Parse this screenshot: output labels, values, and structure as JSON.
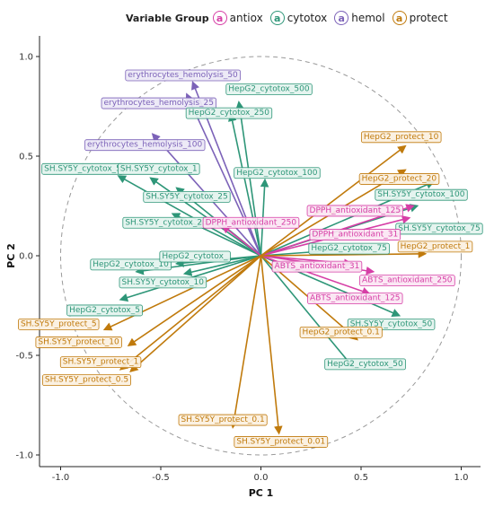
{
  "legend": {
    "title": "Variable Group",
    "items": [
      {
        "key": "antiox",
        "label": "antiox",
        "color": "#D63EA6"
      },
      {
        "key": "cytotox",
        "label": "cytotox",
        "color": "#2E9678"
      },
      {
        "key": "hemol",
        "label": "hemol",
        "color": "#7C62B8"
      },
      {
        "key": "protect",
        "label": "protect",
        "color": "#C07A0C"
      }
    ]
  },
  "chart_data": {
    "type": "biplot-vectors",
    "xlabel": "PC 1",
    "ylabel": "PC 2",
    "xlim": [
      -1.1,
      1.1
    ],
    "ylim": [
      -1.1,
      1.1
    ],
    "xticks": [
      "-1.0",
      "-0.5",
      "0.0",
      "0.5",
      "1.0"
    ],
    "yticks": [
      "1.0",
      "0.5",
      "0.0",
      "-0.5",
      "-1.0"
    ],
    "tick_values": [
      -1.0,
      -0.5,
      0.0,
      0.5,
      1.0
    ],
    "unit_circle": true,
    "grid": false,
    "vectors": [
      {
        "name": "erythrocytes_hemolysis_50",
        "group": "hemol",
        "x": -0.34,
        "y": 0.87,
        "lx": -0.39,
        "ly": 0.91
      },
      {
        "name": "erythrocytes_hemolysis_25",
        "group": "hemol",
        "x": -0.37,
        "y": 0.81,
        "lx": -0.51,
        "ly": 0.77
      },
      {
        "name": "erythrocytes_hemolysis_100",
        "group": "hemol",
        "x": -0.54,
        "y": 0.61,
        "lx": -0.58,
        "ly": 0.56
      },
      {
        "name": "HepG2_cytotox_500",
        "group": "cytotox",
        "x": -0.11,
        "y": 0.77,
        "lx": 0.04,
        "ly": 0.84
      },
      {
        "name": "HepG2_cytotox_250",
        "group": "cytotox",
        "x": -0.15,
        "y": 0.71,
        "lx": -0.16,
        "ly": 0.72
      },
      {
        "name": "HepG2_cytotox_100",
        "group": "cytotox",
        "x": 0.02,
        "y": 0.38,
        "lx": 0.08,
        "ly": 0.42
      },
      {
        "name": "SH.SY5Y_cytotox_5",
        "group": "cytotox",
        "x": -0.71,
        "y": 0.4,
        "lx": -0.89,
        "ly": 0.44
      },
      {
        "name": "SH.SY5Y_cytotox_1",
        "group": "cytotox",
        "x": -0.55,
        "y": 0.39,
        "lx": -0.51,
        "ly": 0.44
      },
      {
        "name": "SH.SY5Y_cytotox_25",
        "group": "cytotox",
        "x": -0.42,
        "y": 0.34,
        "lx": -0.37,
        "ly": 0.3
      },
      {
        "name": "SH.SY5Y_cytotox_250",
        "group": "cytotox",
        "x": -0.44,
        "y": 0.21,
        "lx": -0.46,
        "ly": 0.17
      },
      {
        "name": "HepG2_cytotox_10",
        "group": "cytotox",
        "x": -0.62,
        "y": -0.08,
        "lx": -0.65,
        "ly": -0.04
      },
      {
        "name": "HepG2_cytotox_",
        "group": "cytotox",
        "x": -0.42,
        "y": -0.04,
        "lx": -0.33,
        "ly": 0.0
      },
      {
        "name": "SH.SY5Y_cytotox_10",
        "group": "cytotox",
        "x": -0.38,
        "y": -0.09,
        "lx": -0.49,
        "ly": -0.13
      },
      {
        "name": "HepG2_cytotox_5",
        "group": "cytotox",
        "x": -0.7,
        "y": -0.22,
        "lx": -0.78,
        "ly": -0.27
      },
      {
        "name": "SH.SY5Y_cytotox_100",
        "group": "cytotox",
        "x": 0.86,
        "y": 0.37,
        "lx": 0.8,
        "ly": 0.31
      },
      {
        "name": "SH.SY5Y_cytotox_75",
        "group": "cytotox",
        "x": 0.78,
        "y": 0.25,
        "lx": 0.89,
        "ly": 0.14
      },
      {
        "name": "HepG2_cytotox_75",
        "group": "cytotox",
        "x": 0.54,
        "y": 0.04,
        "lx": 0.44,
        "ly": 0.04
      },
      {
        "name": "SH.SY5Y_cytotox_50",
        "group": "cytotox",
        "x": 0.69,
        "y": -0.3,
        "lx": 0.65,
        "ly": -0.34
      },
      {
        "name": "HepG2_cytotox_50",
        "group": "cytotox",
        "x": 0.46,
        "y": -0.56,
        "lx": 0.52,
        "ly": -0.54
      },
      {
        "name": "DPPH_antioxidant_250",
        "group": "antiox",
        "x": -0.19,
        "y": 0.15,
        "lx": -0.05,
        "ly": 0.17
      },
      {
        "name": "DPPH_antioxidant_125",
        "group": "antiox",
        "x": 0.76,
        "y": 0.25,
        "lx": 0.47,
        "ly": 0.23
      },
      {
        "name": "DPPH_antioxidant_31",
        "group": "antiox",
        "x": 0.74,
        "y": 0.19,
        "lx": 0.47,
        "ly": 0.11
      },
      {
        "name": "ABTS_antioxidant_31",
        "group": "antiox",
        "x": 0.45,
        "y": -0.04,
        "lx": 0.28,
        "ly": -0.05
      },
      {
        "name": "ABTS_antioxidant_250",
        "group": "antiox",
        "x": 0.56,
        "y": -0.08,
        "lx": 0.73,
        "ly": -0.12
      },
      {
        "name": "ABTS_antioxidant_125",
        "group": "antiox",
        "x": 0.54,
        "y": -0.19,
        "lx": 0.47,
        "ly": -0.21
      },
      {
        "name": "HepG2_protect_10",
        "group": "protect",
        "x": 0.72,
        "y": 0.55,
        "lx": 0.7,
        "ly": 0.6
      },
      {
        "name": "HepG2_protect_20",
        "group": "protect",
        "x": 0.72,
        "y": 0.43,
        "lx": 0.69,
        "ly": 0.39
      },
      {
        "name": "HepG2_protect_1",
        "group": "protect",
        "x": 0.82,
        "y": 0.01,
        "lx": 0.87,
        "ly": 0.05
      },
      {
        "name": "HepG2_protect_0.1",
        "group": "protect",
        "x": 0.48,
        "y": -0.42,
        "lx": 0.4,
        "ly": -0.38
      },
      {
        "name": "SH.SY5Y_protect_5",
        "group": "protect",
        "x": -0.78,
        "y": -0.37,
        "lx": -1.01,
        "ly": -0.34
      },
      {
        "name": "SH.SY5Y_protect_10",
        "group": "protect",
        "x": -0.66,
        "y": -0.45,
        "lx": -0.91,
        "ly": -0.43
      },
      {
        "name": "SH.SY5Y_protect_1",
        "group": "protect",
        "x": -0.65,
        "y": -0.58,
        "lx": -0.8,
        "ly": -0.53
      },
      {
        "name": "SH.SY5Y_protect_0.5",
        "group": "protect",
        "x": -0.7,
        "y": -0.57,
        "lx": -0.87,
        "ly": -0.62
      },
      {
        "name": "SH.SY5Y_protect_0.1",
        "group": "protect",
        "x": -0.14,
        "y": -0.86,
        "lx": -0.19,
        "ly": -0.82
      },
      {
        "name": "SH.SY5Y_protect_0.01",
        "group": "protect",
        "x": 0.09,
        "y": -0.89,
        "lx": 0.1,
        "ly": -0.93
      }
    ]
  }
}
